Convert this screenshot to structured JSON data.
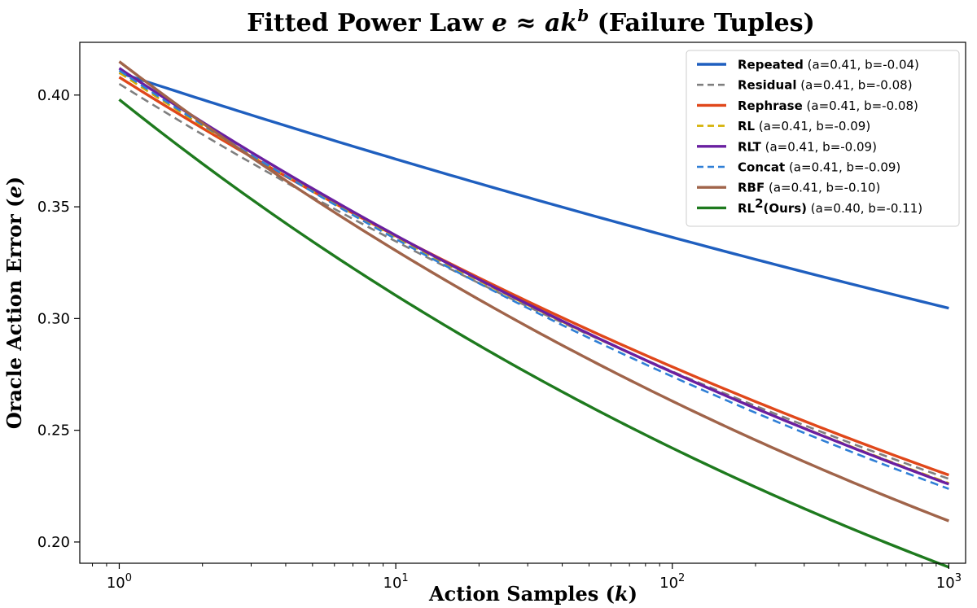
{
  "chart_data": {
    "type": "line",
    "title": {
      "prefix": "Fitted Power Law ",
      "math_e": "e",
      "approx": " ≈ ",
      "math_ak": "ak",
      "math_b": "b",
      "suffix": " (Failure Tuples)"
    },
    "xlabel": {
      "text": "Action Samples (",
      "var": "k",
      "close": ")"
    },
    "ylabel": {
      "text": "Oracle Action Error (",
      "var": "e",
      "close": ")"
    },
    "x_scale": "log",
    "xlim": [
      0.72,
      1150
    ],
    "ylim": [
      0.1905,
      0.4236
    ],
    "x_ticks": [
      {
        "value": 1,
        "base": "10",
        "exp": "0"
      },
      {
        "value": 10,
        "base": "10",
        "exp": "1"
      },
      {
        "value": 100,
        "base": "10",
        "exp": "2"
      },
      {
        "value": 1000,
        "base": "10",
        "exp": "3"
      }
    ],
    "y_ticks": [
      {
        "value": 0.2,
        "label": "0.20"
      },
      {
        "value": 0.25,
        "label": "0.25"
      },
      {
        "value": 0.3,
        "label": "0.30"
      },
      {
        "value": 0.35,
        "label": "0.35"
      },
      {
        "value": 0.4,
        "label": "0.40"
      }
    ],
    "grid": false,
    "legend_position": "top-right",
    "x_range": [
      1,
      1000
    ],
    "series": [
      {
        "name": "Repeated",
        "params": "(a=0.41, b=-0.04)",
        "color": "#1f5fbf",
        "dash": "solid",
        "a": 0.41,
        "b": -0.043
      },
      {
        "name": "Residual",
        "params": "(a=0.41, b=-0.08)",
        "color": "#7f7f7f",
        "dash": "dashed",
        "a": 0.405,
        "b": -0.083
      },
      {
        "name": "Rephrase",
        "params": "(a=0.41, b=-0.08)",
        "color": "#e0471a",
        "dash": "solid",
        "a": 0.408,
        "b": -0.083
      },
      {
        "name": "RL",
        "params": "(a=0.41, b=-0.09)",
        "color": "#d4b000",
        "dash": "dashed",
        "a": 0.41,
        "b": -0.086
      },
      {
        "name": "RLT",
        "params": "(a=0.41, b=-0.09)",
        "color": "#6a1fa0",
        "dash": "solid",
        "a": 0.412,
        "b": -0.087
      },
      {
        "name": "Concat",
        "params": "(a=0.41, b=-0.09)",
        "color": "#2f7fd6",
        "dash": "dashed",
        "a": 0.411,
        "b": -0.088
      },
      {
        "name": "RBF",
        "params": "(a=0.41, b=-0.10)",
        "color": "#a0644a",
        "dash": "solid",
        "a": 0.415,
        "b": -0.099
      },
      {
        "name": "RL",
        "name_sup": "2",
        "name_suffix": "(Ours)",
        "params": "(a=0.40, b=-0.11)",
        "color": "#1e7a1e",
        "dash": "solid",
        "a": 0.398,
        "b": -0.108
      }
    ]
  }
}
